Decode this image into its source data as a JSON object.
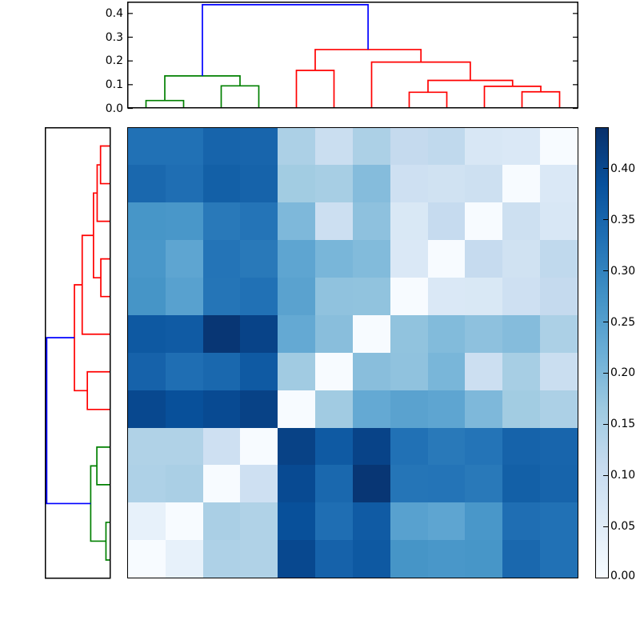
{
  "figure": {
    "background": "#ffffff",
    "box_color": "#000000",
    "cluster_colors": {
      "root": "#0000ff",
      "green_cluster": "#008000",
      "red_cluster": "#ff0000"
    }
  },
  "chart_data": {
    "type": "heatmap",
    "title": "",
    "colormap": "Blues",
    "vmin": 0.0,
    "vmax": 0.44,
    "grid": false,
    "matrix": [
      [
        0.33,
        0.33,
        0.352,
        0.35,
        0.146,
        0.101,
        0.146,
        0.112,
        0.118,
        0.068,
        0.065,
        0.0
      ],
      [
        0.345,
        0.335,
        0.36,
        0.354,
        0.16,
        0.153,
        0.192,
        0.092,
        0.086,
        0.093,
        0.0,
        0.065
      ],
      [
        0.268,
        0.265,
        0.317,
        0.325,
        0.2,
        0.096,
        0.182,
        0.066,
        0.109,
        0.0,
        0.093,
        0.068
      ],
      [
        0.265,
        0.238,
        0.325,
        0.317,
        0.237,
        0.205,
        0.195,
        0.064,
        0.0,
        0.109,
        0.086,
        0.118
      ],
      [
        0.27,
        0.245,
        0.324,
        0.33,
        0.243,
        0.18,
        0.179,
        0.0,
        0.064,
        0.066,
        0.092,
        0.112
      ],
      [
        0.372,
        0.367,
        0.43,
        0.408,
        0.23,
        0.188,
        0.0,
        0.179,
        0.195,
        0.182,
        0.192,
        0.146
      ],
      [
        0.355,
        0.335,
        0.345,
        0.37,
        0.161,
        0.0,
        0.188,
        0.18,
        0.205,
        0.096,
        0.153,
        0.101
      ],
      [
        0.4,
        0.387,
        0.396,
        0.41,
        0.0,
        0.161,
        0.23,
        0.243,
        0.237,
        0.2,
        0.16,
        0.146
      ],
      [
        0.14,
        0.14,
        0.092,
        0.0,
        0.41,
        0.37,
        0.408,
        0.33,
        0.317,
        0.325,
        0.354,
        0.35
      ],
      [
        0.143,
        0.148,
        0.0,
        0.092,
        0.396,
        0.345,
        0.43,
        0.324,
        0.325,
        0.317,
        0.36,
        0.352
      ],
      [
        0.035,
        0.0,
        0.148,
        0.14,
        0.387,
        0.335,
        0.367,
        0.245,
        0.238,
        0.265,
        0.335,
        0.33
      ],
      [
        0.0,
        0.035,
        0.143,
        0.14,
        0.4,
        0.355,
        0.372,
        0.27,
        0.265,
        0.268,
        0.345,
        0.33
      ]
    ],
    "col_dendrogram": {
      "orientation": "top",
      "leaf_count": 12,
      "ylim": [
        0.0,
        0.45
      ],
      "ytick_values": [
        0.4,
        0.3,
        0.2,
        0.1,
        0.0
      ],
      "tick_labels": [
        "0.4",
        "0.3",
        "0.2",
        "0.1",
        "0.0"
      ],
      "links": [
        {
          "u1": 0.5,
          "u2": 1.5,
          "h": 0.033,
          "h1": 0.0,
          "h2": 0.0,
          "color": "#008000"
        },
        {
          "u1": 2.5,
          "u2": 3.5,
          "h": 0.095,
          "h1": 0.0,
          "h2": 0.0,
          "color": "#008000"
        },
        {
          "u1": 1.0,
          "u2": 3.0,
          "h": 0.137,
          "h1": 0.033,
          "h2": 0.095,
          "color": "#008000"
        },
        {
          "u1": 4.5,
          "u2": 5.5,
          "h": 0.16,
          "h1": 0.0,
          "h2": 0.0,
          "color": "#ff0000"
        },
        {
          "u1": 7.5,
          "u2": 8.5,
          "h": 0.068,
          "h1": 0.0,
          "h2": 0.0,
          "color": "#ff0000"
        },
        {
          "u1": 10.5,
          "u2": 11.5,
          "h": 0.07,
          "h1": 0.0,
          "h2": 0.0,
          "color": "#ff0000"
        },
        {
          "u1": 9.5,
          "u2": 11.0,
          "h": 0.093,
          "h1": 0.0,
          "h2": 0.07,
          "color": "#ff0000"
        },
        {
          "u1": 8.0,
          "u2": 10.25,
          "h": 0.118,
          "h1": 0.068,
          "h2": 0.093,
          "color": "#ff0000"
        },
        {
          "u1": 6.5,
          "u2": 9.125,
          "h": 0.195,
          "h1": 0.0,
          "h2": 0.118,
          "color": "#ff0000"
        },
        {
          "u1": 5.0,
          "u2": 7.8125,
          "h": 0.248,
          "h1": 0.16,
          "h2": 0.195,
          "color": "#ff0000"
        },
        {
          "u1": 2.0,
          "u2": 6.40625,
          "h": 0.437,
          "h1": 0.137,
          "h2": 0.248,
          "color": "#0000ff"
        }
      ]
    },
    "row_dendrogram": {
      "orientation": "left",
      "leaf_count": 12,
      "xlim": [
        0.0,
        0.45
      ],
      "links": [
        {
          "u1": 0.5,
          "u2": 1.5,
          "h": 0.07,
          "h1": 0.0,
          "h2": 0.0,
          "color": "#ff0000"
        },
        {
          "u1": 1.0,
          "u2": 2.5,
          "h": 0.093,
          "h1": 0.07,
          "h2": 0.0,
          "color": "#ff0000"
        },
        {
          "u1": 3.5,
          "u2": 4.5,
          "h": 0.068,
          "h1": 0.0,
          "h2": 0.0,
          "color": "#ff0000"
        },
        {
          "u1": 1.75,
          "u2": 4.0,
          "h": 0.118,
          "h1": 0.093,
          "h2": 0.068,
          "color": "#ff0000"
        },
        {
          "u1": 2.875,
          "u2": 5.5,
          "h": 0.195,
          "h1": 0.118,
          "h2": 0.0,
          "color": "#ff0000"
        },
        {
          "u1": 6.5,
          "u2": 7.5,
          "h": 0.16,
          "h1": 0.0,
          "h2": 0.0,
          "color": "#ff0000"
        },
        {
          "u1": 4.1875,
          "u2": 7.0,
          "h": 0.248,
          "h1": 0.195,
          "h2": 0.16,
          "color": "#ff0000"
        },
        {
          "u1": 8.5,
          "u2": 9.5,
          "h": 0.095,
          "h1": 0.0,
          "h2": 0.0,
          "color": "#008000"
        },
        {
          "u1": 10.5,
          "u2": 11.5,
          "h": 0.033,
          "h1": 0.0,
          "h2": 0.0,
          "color": "#008000"
        },
        {
          "u1": 9.0,
          "u2": 11.0,
          "h": 0.137,
          "h1": 0.095,
          "h2": 0.033,
          "color": "#008000"
        },
        {
          "u1": 5.59375,
          "u2": 10.0,
          "h": 0.437,
          "h1": 0.248,
          "h2": 0.137,
          "color": "#0000ff"
        }
      ]
    },
    "colorbar": {
      "tick_values": [
        0.4,
        0.35,
        0.3,
        0.25,
        0.2,
        0.15,
        0.1,
        0.05,
        0.0
      ],
      "tick_labels": [
        "0.40",
        "0.35",
        "0.30",
        "0.25",
        "0.20",
        "0.15",
        "0.10",
        "0.05",
        "0.00"
      ]
    }
  }
}
